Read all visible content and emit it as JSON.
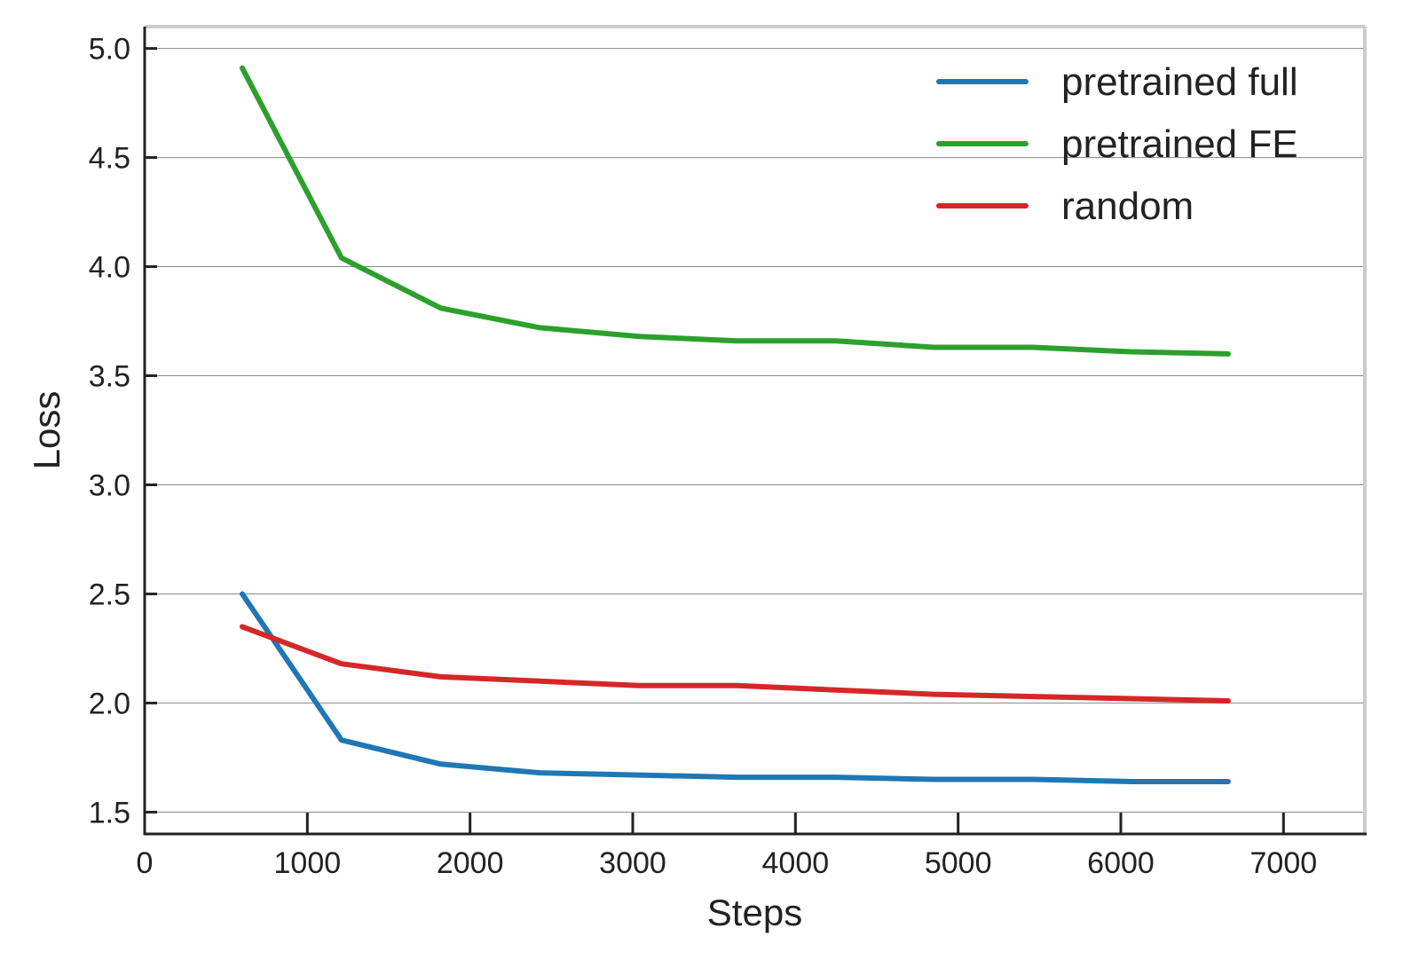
{
  "chart_data": {
    "type": "line",
    "xlabel": "Steps",
    "ylabel": "Loss",
    "xlim": [
      0,
      7500
    ],
    "ylim": [
      1.4,
      5.1
    ],
    "xticks": [
      0,
      1000,
      2000,
      3000,
      4000,
      5000,
      6000,
      7000
    ],
    "yticks": [
      1.5,
      2.0,
      2.5,
      3.0,
      3.5,
      4.0,
      4.5,
      5.0
    ],
    "xtick_labels": [
      "0",
      "1000",
      "2000",
      "3000",
      "4000",
      "5000",
      "6000",
      "7000"
    ],
    "ytick_labels": [
      "1.5",
      "2.0",
      "2.5",
      "3.0",
      "3.5",
      "4.0",
      "4.5",
      "5.0"
    ],
    "grid": "horizontal",
    "legend_position": "top-right",
    "x": [
      600,
      1210,
      1820,
      2430,
      3040,
      3640,
      4250,
      4850,
      5460,
      6060,
      6660
    ],
    "series": [
      {
        "name": "pretrained full",
        "color": "#1f77b4",
        "values": [
          2.5,
          1.83,
          1.72,
          1.68,
          1.67,
          1.66,
          1.66,
          1.65,
          1.65,
          1.64,
          1.64
        ]
      },
      {
        "name": "pretrained FE",
        "color": "#2ca02c",
        "values": [
          4.91,
          4.04,
          3.81,
          3.72,
          3.68,
          3.66,
          3.66,
          3.63,
          3.63,
          3.61,
          3.6
        ]
      },
      {
        "name": "random",
        "color": "#d62728",
        "values": [
          2.35,
          2.18,
          2.12,
          2.1,
          2.08,
          2.08,
          2.06,
          2.04,
          2.03,
          2.02,
          2.01
        ]
      }
    ]
  }
}
